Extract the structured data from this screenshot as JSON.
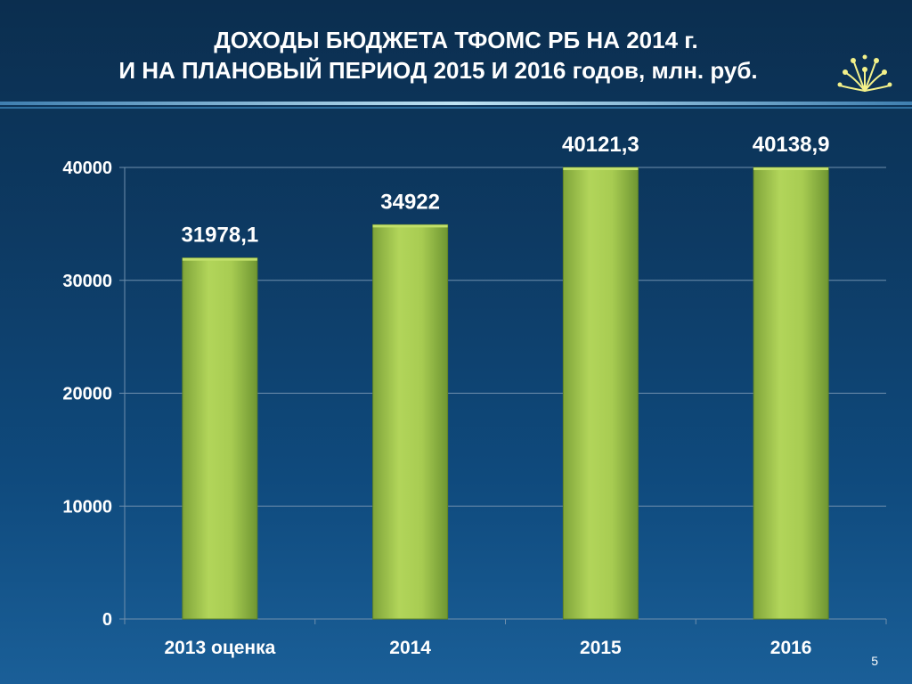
{
  "slide": {
    "title_line1": "ДОХОДЫ БЮДЖЕТА ТФОМС РБ НА 2014 г.",
    "title_line2": "И НА ПЛАНОВЫЙ ПЕРИОД 2015 И 2016 годов, млн. руб.",
    "page_number": "5",
    "logo_icon": "kurai-flower-icon"
  },
  "colors": {
    "background_top": "#0b2e4f",
    "background_bottom": "#1a5f98",
    "bar_fill": "#9ec24a",
    "bar_highlight": "#c2e06a",
    "gridline": "#6f8fad",
    "text": "#ffffff"
  },
  "chart_data": {
    "type": "bar",
    "title": "",
    "xlabel": "",
    "ylabel": "",
    "categories": [
      "2013 оценка",
      "2014",
      "2015",
      "2016"
    ],
    "values": [
      31978.1,
      34922,
      40121.3,
      40138.9
    ],
    "data_labels": [
      "31978,1",
      "34922",
      "40121,3",
      "40138,9"
    ],
    "ylim": [
      0,
      40000
    ],
    "yticks": [
      0,
      10000,
      20000,
      30000,
      40000
    ],
    "ytick_labels": [
      "0",
      "10000",
      "20000",
      "30000",
      "40000"
    ],
    "grid": true,
    "legend": "none"
  }
}
